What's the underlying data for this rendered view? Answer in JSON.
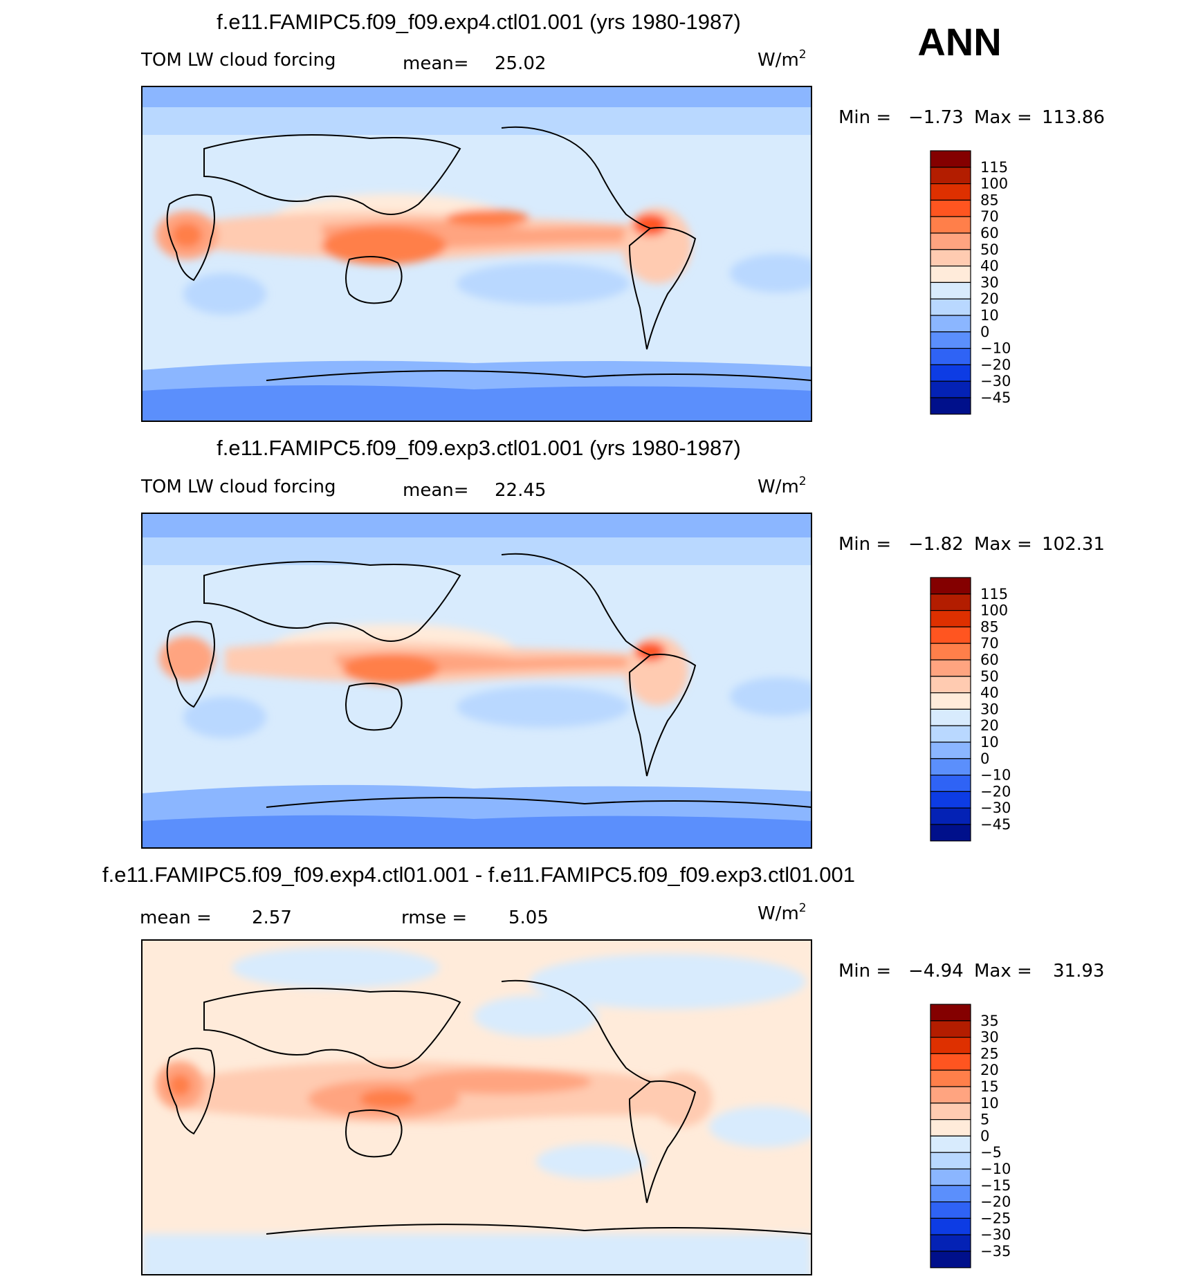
{
  "season": "ANN",
  "units_base": "W/m",
  "units_exp": "2",
  "chart_data": [
    {
      "type": "heatmap",
      "title": "f.e11.FAMIPC5.f09_f09.exp4.ctl01.001 (yrs 1980-1987)",
      "variable": "TOM LW cloud forcing",
      "mean_label": "mean=",
      "mean": "25.02",
      "min_label": "Min =",
      "min": "−1.73",
      "max_label": "Max =",
      "max": "113.86",
      "legend": [
        "115",
        "100",
        "85",
        "70",
        "60",
        "50",
        "40",
        "30",
        "20",
        "10",
        "0",
        "−10",
        "−20",
        "−30",
        "−45"
      ],
      "colors": [
        "#840000",
        "#b31d00",
        "#de3000",
        "#ff5520",
        "#ff7f4a",
        "#ffa480",
        "#ffcbb1",
        "#ffebda",
        "#d8ebfd",
        "#b9d8ff",
        "#8bb6ff",
        "#5b8ffc",
        "#2f63f5",
        "#0d3ce4",
        "#0422b5",
        "#00108b"
      ]
    },
    {
      "type": "heatmap",
      "title": "f.e11.FAMIPC5.f09_f09.exp3.ctl01.001 (yrs 1980-1987)",
      "variable": "TOM LW cloud forcing",
      "mean_label": "mean=",
      "mean": "22.45",
      "min_label": "Min =",
      "min": "−1.82",
      "max_label": "Max =",
      "max": "102.31",
      "legend": [
        "115",
        "100",
        "85",
        "70",
        "60",
        "50",
        "40",
        "30",
        "20",
        "10",
        "0",
        "−10",
        "−20",
        "−30",
        "−45"
      ],
      "colors": [
        "#840000",
        "#b31d00",
        "#de3000",
        "#ff5520",
        "#ff7f4a",
        "#ffa480",
        "#ffcbb1",
        "#ffebda",
        "#d8ebfd",
        "#b9d8ff",
        "#8bb6ff",
        "#5b8ffc",
        "#2f63f5",
        "#0d3ce4",
        "#0422b5",
        "#00108b"
      ]
    },
    {
      "type": "heatmap",
      "title": "f.e11.FAMIPC5.f09_f09.exp4.ctl01.001 - f.e11.FAMIPC5.f09_f09.exp3.ctl01.001",
      "mean_label": "mean =",
      "mean": "2.57",
      "rmse_label": "rmse =",
      "rmse": "5.05",
      "min_label": "Min =",
      "min": "−4.94",
      "max_label": "Max =",
      "max": "31.93",
      "legend": [
        "35",
        "30",
        "25",
        "20",
        "15",
        "10",
        "5",
        "0",
        "−5",
        "−10",
        "−15",
        "−20",
        "−25",
        "−30",
        "−35"
      ],
      "colors": [
        "#840000",
        "#b31d00",
        "#de3000",
        "#ff5520",
        "#ff7f4a",
        "#ffa480",
        "#ffcbb1",
        "#ffebda",
        "#d8ebfd",
        "#b9d8ff",
        "#8bb6ff",
        "#5b8ffc",
        "#2f63f5",
        "#0d3ce4",
        "#0422b5",
        "#00108b"
      ]
    }
  ]
}
